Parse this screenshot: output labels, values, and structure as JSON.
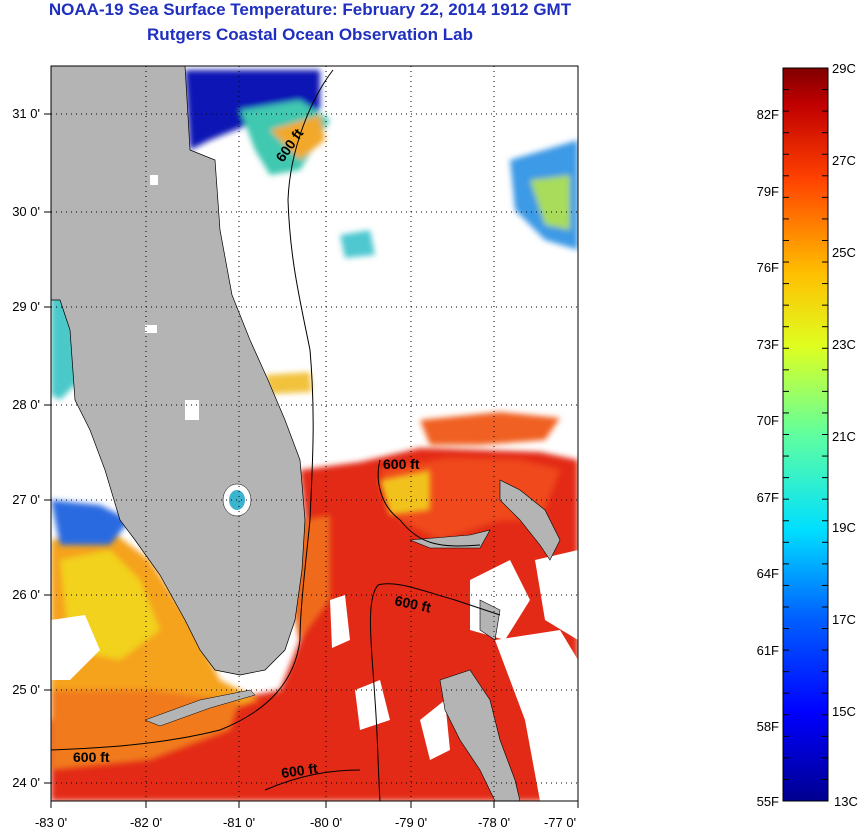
{
  "header": {
    "title": "NOAA-19 Sea Surface Temperature:  February 22, 2014 1912 GMT",
    "subtitle": "Rutgers Coastal Ocean Observation Lab"
  },
  "map": {
    "lon_ticks": [
      "-83 0'",
      "-82 0'",
      "-81 0'",
      "-80 0'",
      "-79 0'",
      "-78 0'",
      "-77 0'"
    ],
    "lat_ticks": [
      "31 0'",
      "30 0'",
      "29 0'",
      "28 0'",
      "27 0'",
      "26 0'",
      "25 0'",
      "24 0'"
    ],
    "contour_labels": [
      "600 ft",
      "600 ft",
      "600 ft",
      "600 ft",
      "600 ft"
    ],
    "colors": {
      "land": "#b4b4b4",
      "cloud": "#ffffff",
      "warm": "#e8261a",
      "orange": "#f5801e",
      "yellow": "#f2d21e",
      "cold": "#0a1ec8"
    }
  },
  "colorbar": {
    "celsius": [
      "29C",
      "27C",
      "25C",
      "23C",
      "21C",
      "19C",
      "17C",
      "15C",
      "13C"
    ],
    "fahrenheit": [
      "82F",
      "79F",
      "76F",
      "73F",
      "70F",
      "67F",
      "64F",
      "61F",
      "58F",
      "55F"
    ]
  }
}
